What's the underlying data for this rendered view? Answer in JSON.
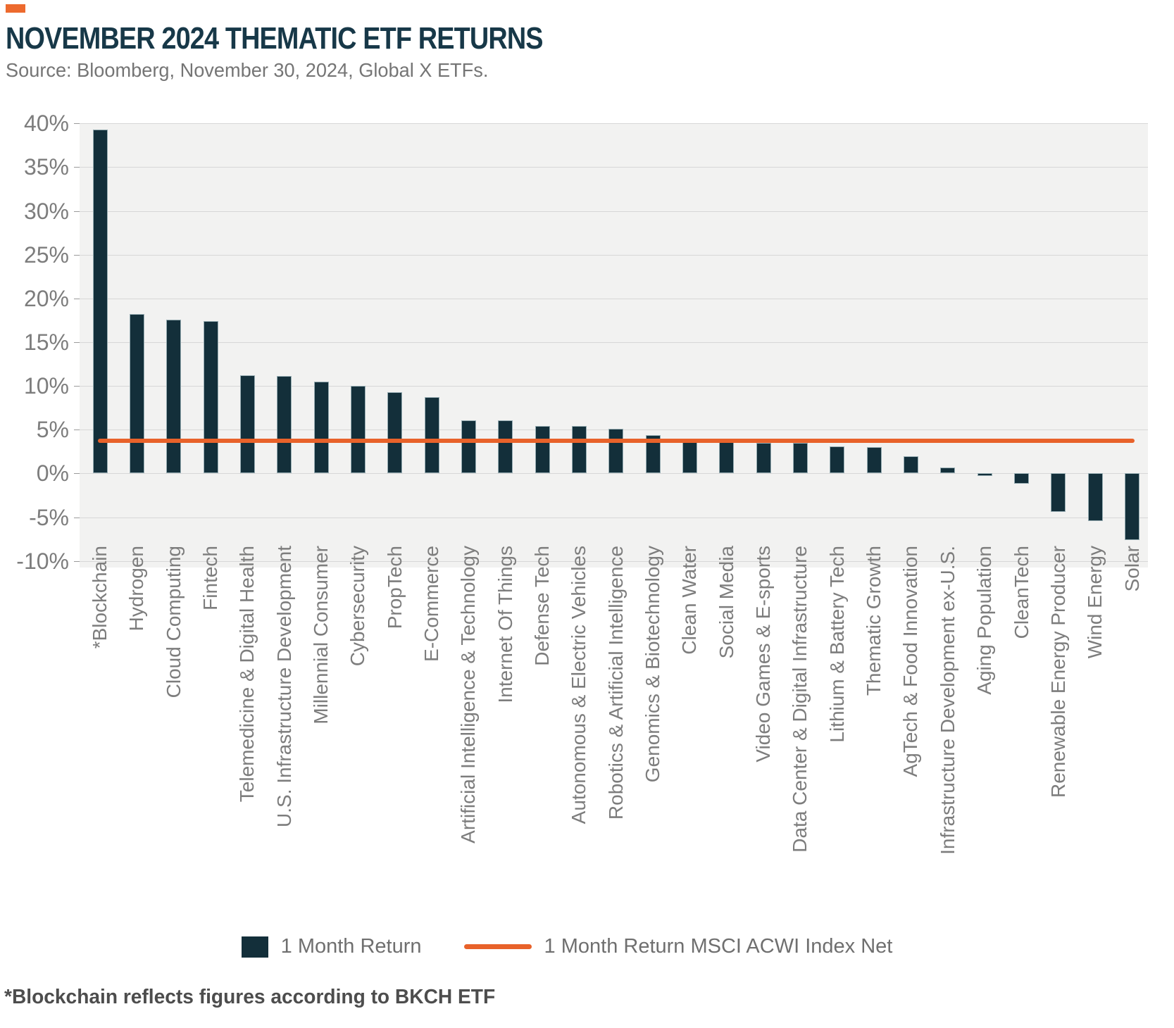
{
  "header": {
    "accent_color": "#ED6A2E",
    "title": "NOVEMBER 2024 THEMATIC ETF RETURNS",
    "title_color": "#173848",
    "source": "Source: Bloomberg, November 30, 2024, Global X ETFs."
  },
  "chart_data": {
    "type": "bar",
    "title": "November 2024 Thematic ETF Returns",
    "categories": [
      "*Blockchain",
      "Hydrogen",
      "Cloud Computing",
      "Fintech",
      "Telemedicine & Digital Health",
      "U.S. Infrastructure Development",
      "Millennial Consumer",
      "Cybersecurity",
      "PropTech",
      "E-Commerce",
      "Artificial Intelligence & Technology",
      "Internet Of Things",
      "Defense Tech",
      "Autonomous & Electric Vehicles",
      "Robotics & Artificial Intelligence",
      "Genomics & Biotechnology",
      "Clean Water",
      "Social Media",
      "Video Games & E-sports",
      "Data Center & Digital Infrastructure",
      "Lithium & Battery Tech",
      "Thematic Growth",
      "AgTech & Food Innovation",
      "Infrastructure Development ex-U.S.",
      "Aging Population",
      "CleanTech",
      "Renewable Energy Producer",
      "Wind Energy",
      "Solar"
    ],
    "series": [
      {
        "name": "1 Month Return",
        "color": "#132F3A",
        "values": [
          39.3,
          18.2,
          17.6,
          17.4,
          11.2,
          11.1,
          10.5,
          10.0,
          9.3,
          8.7,
          6.1,
          6.1,
          5.4,
          5.4,
          5.1,
          4.4,
          4.0,
          3.6,
          3.5,
          3.5,
          3.1,
          3.0,
          2.0,
          0.7,
          -0.3,
          -1.2,
          -4.4,
          -5.4,
          -7.6
        ]
      }
    ],
    "benchmark_line": {
      "name": "1 Month Return MSCI ACWI Index Net",
      "value": 3.7,
      "color": "#E8622A"
    },
    "ylim": [
      -10,
      40
    ],
    "yticks": [
      40,
      35,
      30,
      25,
      20,
      15,
      10,
      5,
      0,
      -5,
      -10
    ],
    "y_tick_suffix": "%",
    "grid": true,
    "plot_background": "#f2f2f1",
    "legend_position": "bottom"
  },
  "legend": {
    "bar_label": "1 Month Return",
    "line_label": "1 Month Return MSCI ACWI Index Net"
  },
  "footnote": "*Blockchain reflects figures according to BKCH ETF"
}
